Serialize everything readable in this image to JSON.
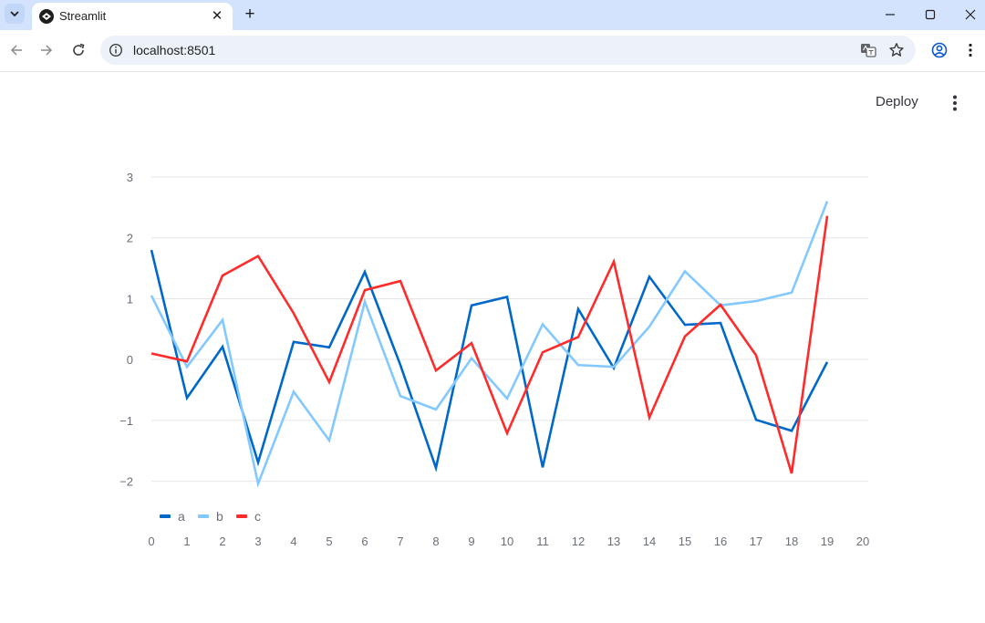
{
  "browser": {
    "tab_title": "Streamlit",
    "tab_close_glyph": "✕",
    "new_tab_glyph": "+",
    "url": "localhost:8501",
    "icons": [
      "tab-search-icon",
      "streamlit-favicon-icon",
      "close-icon",
      "plus-icon",
      "minimize-icon",
      "maximize-icon",
      "window-close-icon",
      "back-icon",
      "forward-icon",
      "reload-icon",
      "site-info-icon",
      "translate-icon",
      "bookmark-star-icon",
      "profile-icon",
      "kebab-menu-icon"
    ]
  },
  "app": {
    "deploy_label": "Deploy",
    "menu_icon": "vertical-dots-icon"
  },
  "colors": {
    "a": "#0068c9",
    "b": "#83c9ff",
    "c": "#ff2b2b",
    "tabbar": "#d3e3fd",
    "gridline": "#e6e6ea",
    "tick_text": "#6b6e78"
  },
  "chart_data": {
    "type": "line",
    "x": [
      0,
      1,
      2,
      3,
      4,
      5,
      6,
      7,
      8,
      9,
      10,
      11,
      12,
      13,
      14,
      15,
      16,
      17,
      18,
      19
    ],
    "xlim": [
      0,
      20
    ],
    "ylim": [
      -2.5,
      3
    ],
    "x_ticks": [
      "0",
      "1",
      "2",
      "3",
      "4",
      "5",
      "6",
      "7",
      "8",
      "9",
      "10",
      "11",
      "12",
      "13",
      "14",
      "15",
      "16",
      "17",
      "18",
      "19",
      "20"
    ],
    "y_ticks": [
      {
        "value": 3,
        "label": "3"
      },
      {
        "value": 2,
        "label": "2"
      },
      {
        "value": 1,
        "label": "1"
      },
      {
        "value": 0,
        "label": "0"
      },
      {
        "value": -1,
        "label": "−1"
      },
      {
        "value": -2,
        "label": "−2"
      }
    ],
    "grid": true,
    "legend_position": "bottom-left",
    "series": [
      {
        "name": "a",
        "color": "#0068c9",
        "values": [
          1.8,
          -0.63,
          0.21,
          -1.69,
          0.29,
          0.2,
          1.44,
          -0.09,
          -1.78,
          0.89,
          1.03,
          -1.77,
          0.83,
          -0.14,
          1.36,
          0.57,
          0.6,
          -0.99,
          -1.17,
          -0.04
        ]
      },
      {
        "name": "b",
        "color": "#83c9ff",
        "values": [
          1.05,
          -0.12,
          0.65,
          -2.04,
          -0.53,
          -1.33,
          0.95,
          -0.6,
          -0.82,
          0.02,
          -0.64,
          0.58,
          -0.09,
          -0.12,
          0.54,
          1.45,
          0.89,
          0.96,
          1.1,
          2.6
        ]
      },
      {
        "name": "c",
        "color": "#ff2b2b",
        "values": [
          0.1,
          -0.03,
          1.38,
          1.7,
          0.76,
          -0.37,
          1.14,
          1.29,
          -0.18,
          0.27,
          -1.21,
          0.12,
          0.37,
          1.61,
          -0.95,
          0.38,
          0.9,
          0.07,
          -1.87,
          2.36
        ]
      }
    ]
  }
}
